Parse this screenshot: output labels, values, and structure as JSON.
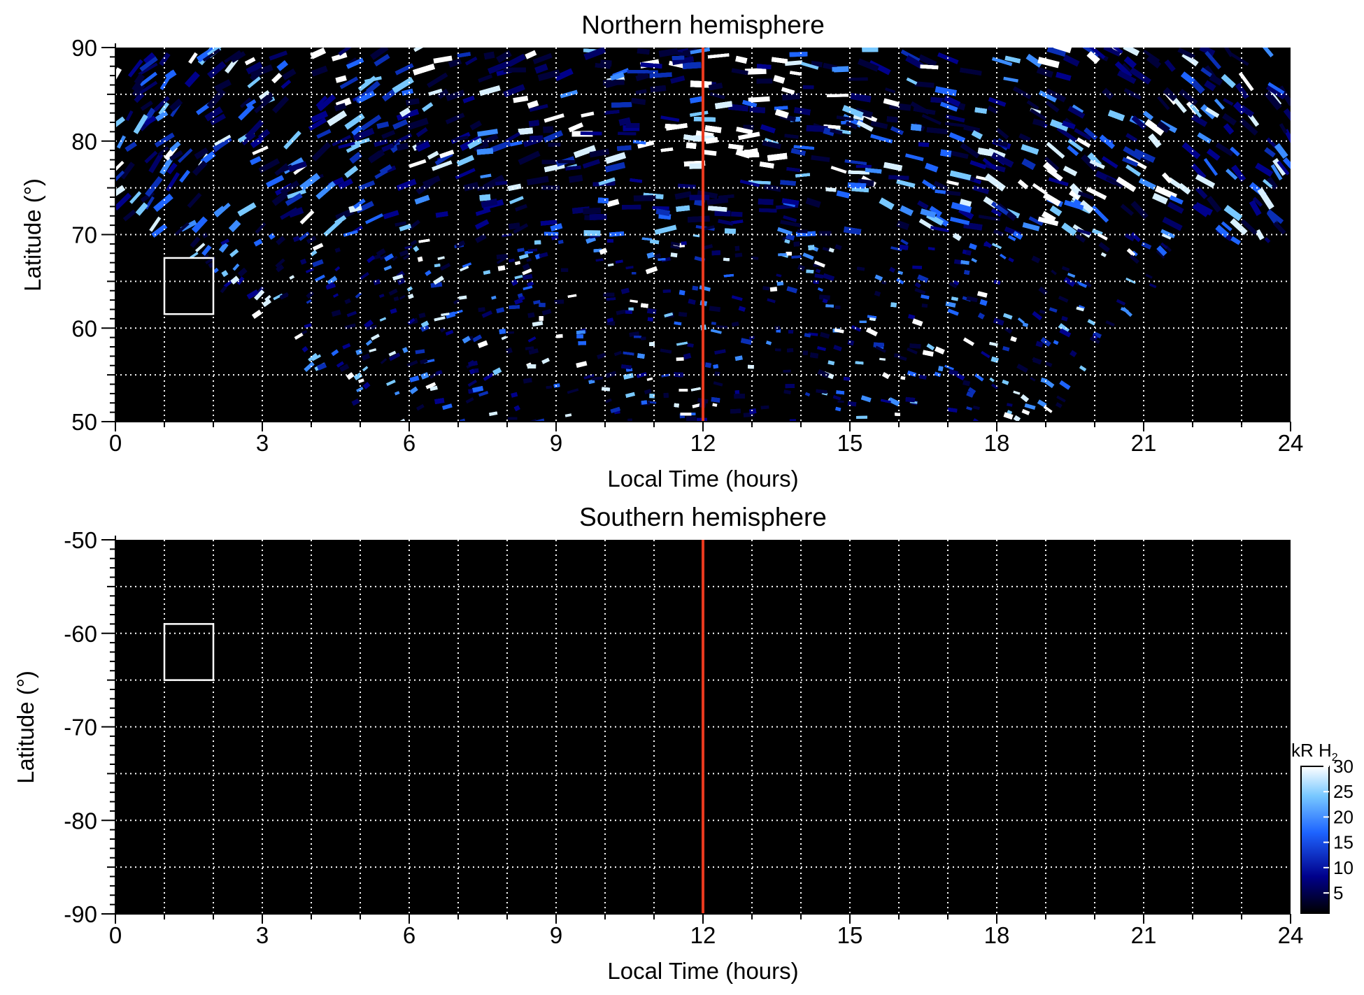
{
  "chart_data": [
    {
      "type": "heatmap",
      "title": "Northern hemisphere",
      "xlabel": "Local Time (hours)",
      "ylabel": "Latitude (°)",
      "xlim": [
        0,
        24
      ],
      "ylim": [
        50,
        90
      ],
      "x_ticks": [
        "0",
        "3",
        "6",
        "9",
        "12",
        "15",
        "18",
        "21",
        "24"
      ],
      "y_ticks": [
        "50",
        "60",
        "70",
        "80",
        "90"
      ],
      "grid": true,
      "grid_x_step_hours": 1,
      "grid_y_step_deg": 5,
      "noon_line": {
        "local_time": 12,
        "color": "#e8391e"
      },
      "box": {
        "lt": [
          1,
          2
        ],
        "lat": [
          61.5,
          67.5
        ],
        "color": "#ffffff"
      },
      "coverage": "data above about 69° at all local times; extends down to 50° between about 6 and 19 h",
      "bright_regions": [
        "around 12 h near 79–80°",
        "around 19–21 h near 74–77°"
      ]
    },
    {
      "type": "heatmap",
      "title": "Southern hemisphere",
      "xlabel": "Local Time (hours)",
      "ylabel": "Latitude (°)",
      "xlim": [
        0,
        24
      ],
      "ylim": [
        -90,
        -50
      ],
      "x_ticks": [
        "0",
        "3",
        "6",
        "9",
        "12",
        "15",
        "18",
        "21",
        "24"
      ],
      "y_ticks": [
        "-50",
        "-60",
        "-70",
        "-80",
        "-90"
      ],
      "grid": true,
      "grid_x_step_hours": 1,
      "grid_y_step_deg": 5,
      "noon_line": {
        "local_time": 12,
        "color": "#e8391e"
      },
      "box": {
        "lt": [
          1,
          2
        ],
        "lat": [
          -65,
          -59
        ],
        "color": "#ffffff"
      },
      "coverage": "no data; panel is uniformly black"
    }
  ],
  "colorbar": {
    "label": "kR H",
    "label_subscript": "2",
    "ticks": [
      "5",
      "10",
      "15",
      "20",
      "25",
      "30"
    ],
    "range": [
      1,
      30
    ],
    "colors": [
      "#000000",
      "#00008b",
      "#1e64ff",
      "#78c8ff",
      "#ffffff"
    ]
  }
}
